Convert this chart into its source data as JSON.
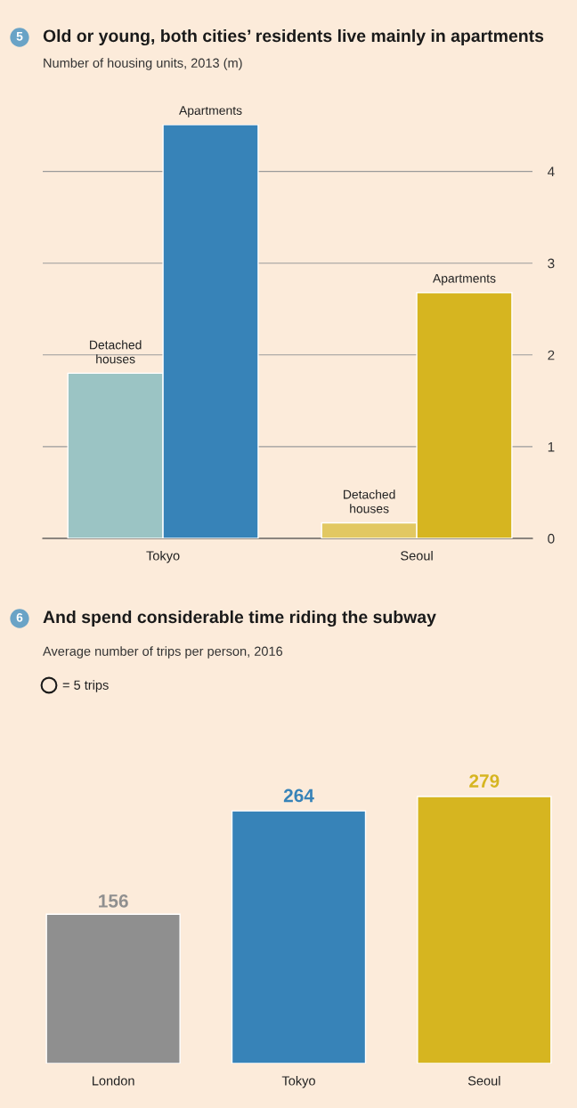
{
  "chart_data": [
    {
      "type": "bar",
      "title": "Old or young, both cities’ residents live mainly in apartments",
      "subtitle": "Number of housing units, 2013 (m)",
      "annotations": [
        "5"
      ],
      "categories": [
        "Tokyo",
        "Seoul"
      ],
      "series": [
        {
          "name": "Detached houses",
          "colors": [
            "#9bc4c4",
            "#e2c862"
          ],
          "values": [
            1.8,
            0.17
          ]
        },
        {
          "name": "Apartments",
          "colors": [
            "#3783b8",
            "#d6b520"
          ],
          "values": [
            4.51,
            2.68
          ]
        }
      ],
      "ylim": [
        0,
        4.51
      ],
      "yticks": [
        0,
        1,
        2,
        3,
        4
      ],
      "grid": "y"
    },
    {
      "type": "bar",
      "title": "And spend considerable time riding the subway",
      "subtitle": "Average number of trips per person, 2016",
      "annotations": [
        "6",
        "= 5 trips"
      ],
      "categories": [
        "London",
        "Tokyo",
        "Seoul"
      ],
      "values": [
        156,
        264,
        279
      ],
      "colors": [
        "#8f8f8f",
        "#3783b8",
        "#d6b520"
      ],
      "data_labels": true
    }
  ]
}
